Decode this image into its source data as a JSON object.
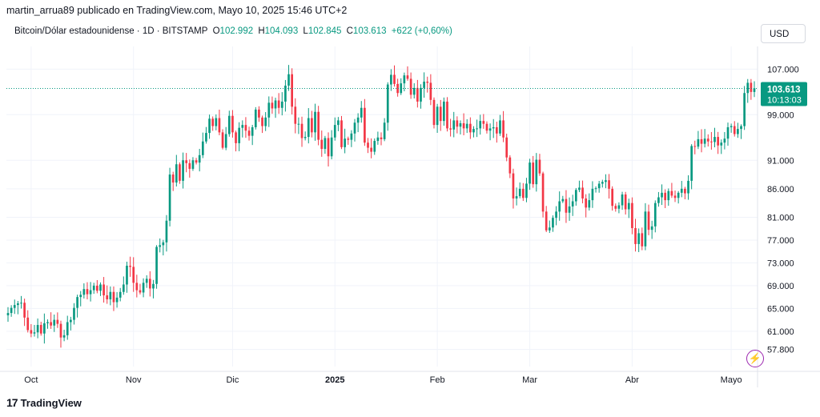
{
  "header": {
    "published_line": "martin_arrua89 publicado en TradingView.com, Mayo 10, 2025 15:46 UTC+2"
  },
  "legend": {
    "symbol": "Bitcoin/Dólar estadounidense · 1D · BITSTAMP",
    "open_label": "O",
    "open_value": "102.992",
    "high_label": "H",
    "high_value": "104.093",
    "low_label": "L",
    "low_value": "102.845",
    "close_label": "C",
    "close_value": "103.613",
    "change": "+622 (+0,60%)"
  },
  "currency_button": "USD",
  "price_tag": {
    "price": "103.613",
    "countdown": "10:13:03"
  },
  "brand": {
    "logo": "17",
    "name": "TradingView"
  },
  "colors": {
    "up": "#089981",
    "down": "#f23645",
    "grid": "#f0f3fa",
    "last_line": "#089981",
    "flash": "#9c27b0"
  },
  "chart_data": {
    "type": "candlestick",
    "y_ticks": [
      {
        "value": 107000,
        "label": "107.000"
      },
      {
        "value": 99000,
        "label": "99.000"
      },
      {
        "value": 91000,
        "label": "91.000"
      },
      {
        "value": 86000,
        "label": "86.000"
      },
      {
        "value": 81000,
        "label": "81.000"
      },
      {
        "value": 77000,
        "label": "77.000"
      },
      {
        "value": 73000,
        "label": "73.000"
      },
      {
        "value": 69000,
        "label": "69.000"
      },
      {
        "value": 65000,
        "label": "65.000"
      },
      {
        "value": 61000,
        "label": "61.000"
      },
      {
        "value": 57800,
        "label": "57.800"
      }
    ],
    "x_ticks": [
      {
        "label": "Oct",
        "date": "2024-10-01"
      },
      {
        "label": "Nov",
        "date": "2024-11-01"
      },
      {
        "label": "Dic",
        "date": "2024-12-01"
      },
      {
        "label": "2025",
        "date": "2025-01-01",
        "bold": true
      },
      {
        "label": "Feb",
        "date": "2025-02-01"
      },
      {
        "label": "Mar",
        "date": "2025-03-01"
      },
      {
        "label": "Abr",
        "date": "2025-04-01"
      },
      {
        "label": "Mayo",
        "date": "2025-05-01"
      }
    ],
    "first_date": "2024-09-24",
    "last_price": 103613,
    "closes": [
      64200,
      65100,
      65600,
      65900,
      66000,
      63400,
      61200,
      60600,
      60800,
      62100,
      60600,
      62400,
      62600,
      62000,
      63000,
      62300,
      59900,
      60300,
      62600,
      63000,
      65100,
      67000,
      67400,
      68400,
      67500,
      68200,
      69000,
      68100,
      69200,
      67300,
      66600,
      67900,
      66100,
      66900,
      67900,
      69200,
      72500,
      72300,
      69500,
      68200,
      67800,
      69500,
      70200,
      68500,
      69300,
      75800,
      76100,
      76600,
      80400,
      88500,
      87100,
      90300,
      87400,
      91000,
      90500,
      89500,
      91000,
      90600,
      91900,
      94300,
      95800,
      98300,
      97000,
      98400,
      95900,
      93200,
      95600,
      98800,
      95900,
      94000,
      96700,
      97200,
      96200,
      95300,
      96800,
      99900,
      98500,
      97000,
      98500,
      101100,
      100100,
      101500,
      100200,
      101300,
      104100,
      106100,
      100400,
      97400,
      97400,
      94900,
      95100,
      98400,
      95900,
      99500,
      94600,
      93000,
      94900,
      91700,
      95000,
      97200,
      98000,
      93300,
      94800,
      94600,
      95700,
      97600,
      98500,
      100200,
      94100,
      93200,
      92500,
      94400,
      95000,
      94700,
      97600,
      104300,
      106000,
      104400,
      102800,
      104500,
      105900,
      105300,
      102500,
      103700,
      101300,
      103700,
      104800,
      104600,
      101600,
      97200,
      100400,
      97900,
      101300,
      96600,
      96400,
      98000,
      96900,
      97500,
      96600,
      97400,
      95900,
      96500,
      96600,
      97900,
      97400,
      96200,
      96600,
      96800,
      95700,
      98000,
      95000,
      91500,
      88700,
      84300,
      84700,
      86000,
      84400,
      86900,
      90600,
      86800,
      91100,
      88700,
      82000,
      78700,
      79200,
      80900,
      82000,
      83800,
      84200,
      81800,
      82900,
      83800,
      85800,
      86200,
      84300,
      82700,
      84000,
      86000,
      86100,
      86900,
      87200,
      87500,
      86000,
      83000,
      82500,
      83100,
      85000,
      82400,
      83500,
      79100,
      76300,
      78200,
      75900,
      82000,
      78800,
      79400,
      83500,
      84500,
      85300,
      84000,
      85600,
      84800,
      84400,
      85300,
      86000,
      85200,
      87400,
      93500,
      93400,
      94700,
      93900,
      94800,
      94300,
      94200,
      95100,
      93600,
      94100,
      94800,
      96800,
      97000,
      95600,
      96500,
      97000,
      102800,
      104600,
      102992,
      103613
    ],
    "price_min": 54800,
    "price_max": 110700
  }
}
